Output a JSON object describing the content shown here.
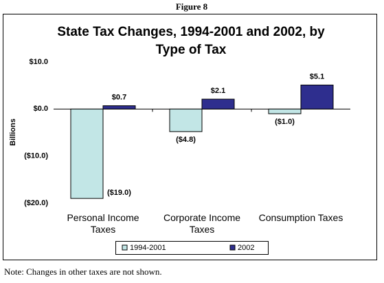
{
  "figure_label": "Figure 8",
  "note": "Note:  Changes in other taxes are not shown.",
  "chart_data": {
    "type": "bar",
    "title": "State Tax Changes, 1994-2001 and 2002, by Type of Tax",
    "y_label": "Billions",
    "categories": [
      "Personal Income Taxes",
      "Corporate Income Taxes",
      "Consumption Taxes"
    ],
    "series": [
      {
        "name": "1994-2001",
        "color": "#c2e6e6",
        "values": [
          -19.0,
          -4.8,
          -1.0
        ],
        "value_labels": [
          "($19.0)",
          "($4.8)",
          "($1.0)"
        ]
      },
      {
        "name": "2002",
        "color": "#2e2e8e",
        "values": [
          0.7,
          2.1,
          5.1
        ],
        "value_labels": [
          "$0.7",
          "$2.1",
          "$5.1"
        ]
      }
    ],
    "ylim": [
      -20,
      10
    ],
    "yticks": [
      {
        "value": -20,
        "label": "($20.0)"
      },
      {
        "value": -10,
        "label": "($10.0)"
      },
      {
        "value": 0,
        "label": "$0.0"
      },
      {
        "value": 10,
        "label": "$10.0"
      }
    ],
    "legend": "bottom"
  }
}
